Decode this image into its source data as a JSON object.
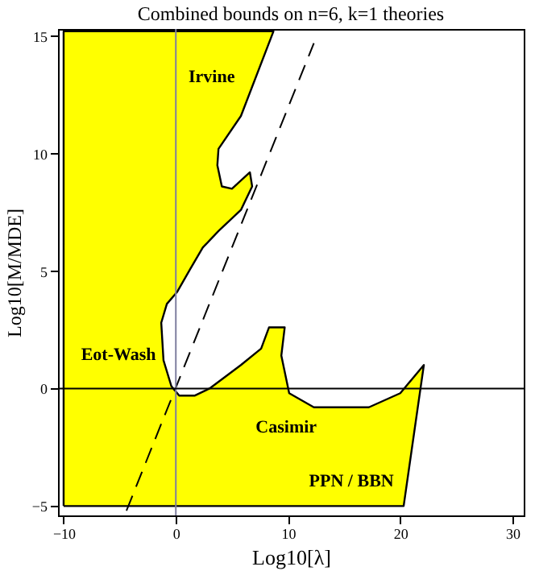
{
  "chart_data": {
    "type": "area",
    "title": "Combined bounds on n=6, k=1 theories",
    "xlabel": "Log10[λ]",
    "ylabel": "Log10[M/MDE]",
    "xlim": [
      -10.5,
      31
    ],
    "ylim": [
      -5.4,
      15.3
    ],
    "xticks": [
      -10,
      0,
      10,
      20,
      30
    ],
    "yticks": [
      -5,
      0,
      5,
      10,
      15
    ],
    "grid": false,
    "series": [
      {
        "color": "#ffff00",
        "x": [
          -10,
          -10,
          8.7,
          5.8,
          3.8,
          3.7,
          4.1,
          5.0,
          6.6,
          6.8,
          5.8,
          3.8,
          2.4,
          1.3,
          0.1,
          -0.8,
          -1.3,
          -1.1,
          -0.4,
          0.3,
          1.7,
          3.0,
          5.8,
          7.6,
          8.3,
          9.7,
          9.4,
          10.1,
          12.3,
          17.2,
          20.0,
          22.1,
          20.3,
          -10
        ],
        "values": [
          -5,
          15.2,
          15.2,
          11.6,
          10.2,
          9.5,
          8.6,
          8.5,
          9.2,
          8.6,
          7.6,
          6.7,
          6.0,
          5.1,
          4.1,
          3.6,
          2.8,
          1.2,
          0.1,
          -0.3,
          -0.3,
          0,
          1.0,
          1.7,
          2.6,
          2.6,
          1.4,
          -0.2,
          -0.8,
          -0.8,
          -0.2,
          1.0,
          -5,
          -5
        ]
      },
      {
        "type": "line",
        "color": "#000000",
        "line_style": "dashed",
        "x": [
          -4.4,
          12.3
        ],
        "values": [
          -5.2,
          14.7
        ]
      }
    ],
    "ref_lines": [
      {
        "axis": "x",
        "value": 0,
        "color": "#7f7f9f"
      },
      {
        "axis": "y",
        "value": 0,
        "color": "#000000"
      }
    ],
    "annotations": [
      "Irvine",
      "Eot-Wash",
      "Casimir",
      "PPN / BBN"
    ]
  }
}
